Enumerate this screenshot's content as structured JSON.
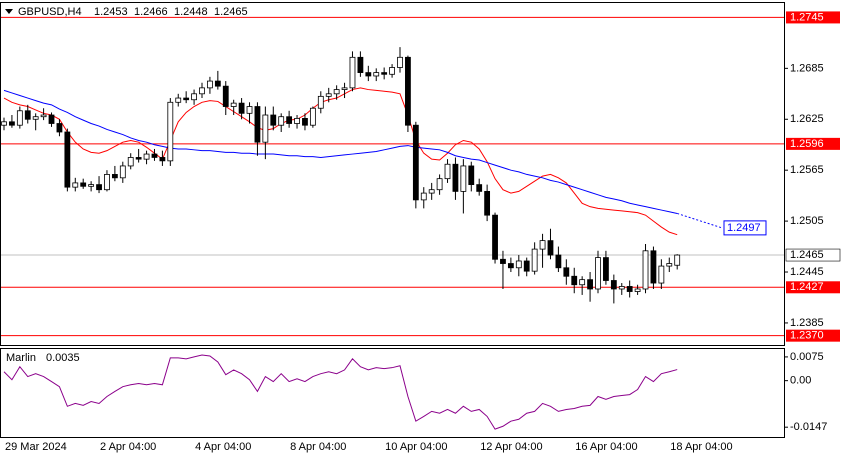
{
  "chart_data": [
    {
      "type": "candlestick",
      "title": "GBPUSD,H4",
      "categories": [
        "29 Mar 2024",
        null,
        null,
        null,
        null,
        null,
        null,
        null,
        null,
        null,
        null,
        null,
        "2 Apr 04:00",
        null,
        null,
        null,
        null,
        null,
        null,
        null,
        null,
        null,
        null,
        null,
        "4 Apr 04:00",
        null,
        null,
        null,
        null,
        null,
        null,
        null,
        null,
        null,
        null,
        null,
        "8 Apr 04:00",
        null,
        null,
        null,
        null,
        null,
        null,
        null,
        null,
        null,
        null,
        null,
        "10 Apr 04:00",
        null,
        null,
        null,
        null,
        null,
        null,
        null,
        null,
        null,
        null,
        null,
        "12 Apr 04:00",
        null,
        null,
        null,
        null,
        null,
        null,
        null,
        null,
        null,
        null,
        null,
        "16 Apr 04:00",
        null,
        null,
        null,
        null,
        null,
        null,
        null,
        null,
        null,
        null,
        null,
        "18 Apr 04:00",
        null
      ],
      "open": [
        1.2618,
        1.2622,
        1.2618,
        1.2635,
        1.2625,
        1.2628,
        1.263,
        1.262,
        1.261,
        1.2545,
        1.255,
        1.2546,
        1.2548,
        1.2542,
        1.256,
        1.2556,
        1.257,
        1.258,
        1.2578,
        1.2584,
        1.258,
        1.2576,
        1.2645,
        1.265,
        1.2648,
        1.2655,
        1.2662,
        1.267,
        1.2664,
        1.264,
        1.2644,
        1.2632,
        1.264,
        1.2598,
        1.263,
        1.2618,
        1.2628,
        1.262,
        1.2626,
        1.2618,
        1.2638,
        1.2652,
        1.2655,
        1.266,
        1.2662,
        1.2698,
        1.268,
        1.2676,
        1.268,
        1.2678,
        1.2686,
        1.2698,
        1.2618,
        1.253,
        1.2538,
        1.2542,
        1.2555,
        1.2572,
        1.254,
        1.257,
        1.2548,
        1.254,
        1.2512,
        1.246,
        1.2455,
        1.245,
        1.2458,
        1.2446,
        1.2472,
        1.2482,
        1.2465,
        1.245,
        1.244,
        1.243,
        1.2436,
        1.2425,
        1.2462,
        1.2435,
        1.2425,
        1.2428,
        1.2422,
        1.2425,
        1.247,
        1.2432,
        1.2452,
        1.2453
      ],
      "high": [
        1.2627,
        1.263,
        1.264,
        1.2642,
        1.2632,
        1.2638,
        1.2633,
        1.2625,
        1.2614,
        1.2556,
        1.2555,
        1.2552,
        1.2558,
        1.2565,
        1.257,
        1.2575,
        1.2585,
        1.259,
        1.2588,
        1.259,
        1.2588,
        1.265,
        1.2655,
        1.2658,
        1.266,
        1.2668,
        1.2675,
        1.2682,
        1.267,
        1.2648,
        1.265,
        1.2645,
        1.2645,
        1.264,
        1.264,
        1.2632,
        1.2635,
        1.263,
        1.2632,
        1.264,
        1.2658,
        1.2662,
        1.2665,
        1.2668,
        1.2705,
        1.2705,
        1.2688,
        1.2685,
        1.2686,
        1.269,
        1.271,
        1.27,
        1.2622,
        1.2545,
        1.255,
        1.256,
        1.2578,
        1.258,
        1.2578,
        1.2575,
        1.2555,
        1.2548,
        1.2515,
        1.247,
        1.2462,
        1.2465,
        1.2462,
        1.248,
        1.249,
        1.2496,
        1.2475,
        1.246,
        1.245,
        1.244,
        1.2445,
        1.247,
        1.247,
        1.2442,
        1.2432,
        1.2435,
        1.243,
        1.2478,
        1.2475,
        1.246,
        1.2462,
        1.2466
      ],
      "low": [
        1.2612,
        1.2615,
        1.2614,
        1.262,
        1.2612,
        1.2624,
        1.2616,
        1.2605,
        1.254,
        1.254,
        1.2543,
        1.254,
        1.2538,
        1.254,
        1.2552,
        1.255,
        1.2566,
        1.2574,
        1.2572,
        1.2576,
        1.257,
        1.257,
        1.264,
        1.2644,
        1.2642,
        1.265,
        1.2655,
        1.266,
        1.263,
        1.263,
        1.2625,
        1.262,
        1.2582,
        1.2578,
        1.2612,
        1.261,
        1.2615,
        1.2614,
        1.2612,
        1.2615,
        1.2632,
        1.2645,
        1.2648,
        1.265,
        1.2658,
        1.2675,
        1.267,
        1.267,
        1.2672,
        1.2674,
        1.268,
        1.261,
        1.252,
        1.252,
        1.253,
        1.2536,
        1.255,
        1.253,
        1.2514,
        1.254,
        1.2535,
        1.2505,
        1.2455,
        1.2425,
        1.2445,
        1.244,
        1.244,
        1.2442,
        1.245,
        1.246,
        1.2445,
        1.243,
        1.242,
        1.2418,
        1.241,
        1.242,
        1.243,
        1.2408,
        1.2418,
        1.2415,
        1.2418,
        1.242,
        1.2425,
        1.2425,
        1.2445,
        1.2448
      ],
      "close": [
        1.2622,
        1.2618,
        1.2635,
        1.2625,
        1.2628,
        1.263,
        1.262,
        1.261,
        1.2545,
        1.255,
        1.2546,
        1.2548,
        1.2542,
        1.256,
        1.2556,
        1.257,
        1.258,
        1.2578,
        1.2584,
        1.258,
        1.2576,
        1.2645,
        1.265,
        1.2648,
        1.2655,
        1.2662,
        1.267,
        1.2664,
        1.264,
        1.2644,
        1.2632,
        1.264,
        1.2598,
        1.263,
        1.2618,
        1.2628,
        1.262,
        1.2626,
        1.2618,
        1.2638,
        1.2652,
        1.2655,
        1.266,
        1.2662,
        1.2698,
        1.268,
        1.2676,
        1.268,
        1.2678,
        1.2686,
        1.2698,
        1.2618,
        1.253,
        1.2538,
        1.2542,
        1.2555,
        1.2572,
        1.254,
        1.257,
        1.2548,
        1.254,
        1.2512,
        1.246,
        1.2455,
        1.245,
        1.2458,
        1.2446,
        1.2472,
        1.2482,
        1.2465,
        1.245,
        1.244,
        1.243,
        1.2436,
        1.2425,
        1.2462,
        1.2435,
        1.2425,
        1.2428,
        1.2422,
        1.2425,
        1.247,
        1.2432,
        1.2452,
        1.2455,
        1.2465
      ],
      "lines": [
        {
          "color": "#ff0000",
          "values": [
            1.265,
            1.2645,
            1.2642,
            1.264,
            1.2636,
            1.2632,
            1.263,
            1.2625,
            1.261,
            1.2598,
            1.259,
            1.2586,
            1.2585,
            1.2588,
            1.2593,
            1.2598,
            1.26,
            1.2598,
            1.2592,
            1.2585,
            1.2578,
            1.26,
            1.2622,
            1.2633,
            1.264,
            1.2645,
            1.2647,
            1.2646,
            1.264,
            1.2634,
            1.2628,
            1.2622,
            1.2615,
            1.2612,
            1.2614,
            1.262,
            1.2624,
            1.2625,
            1.263,
            1.2638,
            1.2645,
            1.2648,
            1.265,
            1.2655,
            1.266,
            1.2662,
            1.266,
            1.2659,
            1.2658,
            1.2657,
            1.2655,
            1.263,
            1.26,
            1.2585,
            1.2578,
            1.2577,
            1.2585,
            1.2595,
            1.26,
            1.2598,
            1.259,
            1.2575,
            1.2555,
            1.2542,
            1.2538,
            1.254,
            1.2546,
            1.2552,
            1.2558,
            1.256,
            1.2556,
            1.255,
            1.2538,
            1.2526,
            1.2522,
            1.252,
            1.2519,
            1.2518,
            1.2517,
            1.2516,
            1.2515,
            1.2512,
            1.2505,
            1.2498,
            1.2492,
            1.2489
          ]
        },
        {
          "color": "#0000ff",
          "projection": 1.2497,
          "values": [
            1.2659,
            1.2656,
            1.2653,
            1.265,
            1.2647,
            1.2644,
            1.2642,
            1.2637,
            1.2633,
            1.2628,
            1.2624,
            1.262,
            1.2617,
            1.2613,
            1.261,
            1.2607,
            1.2603,
            1.26,
            1.2598,
            1.2595,
            1.2593,
            1.2591,
            1.259,
            1.259,
            1.2589,
            1.2588,
            1.2588,
            1.2587,
            1.2586,
            1.2586,
            1.2585,
            1.2585,
            1.2584,
            1.2584,
            1.2584,
            1.2583,
            1.2582,
            1.2582,
            1.2581,
            1.2581,
            1.258,
            1.2581,
            1.2582,
            1.2583,
            1.2584,
            1.2585,
            1.2586,
            1.2587,
            1.2589,
            1.2591,
            1.2593,
            1.2594,
            1.2592,
            1.2591,
            1.259,
            1.2589,
            1.2586,
            1.2582,
            1.258,
            1.2578,
            1.2577,
            1.2574,
            1.2571,
            1.2568,
            1.2565,
            1.2563,
            1.256,
            1.2558,
            1.2556,
            1.2553,
            1.2551,
            1.2548,
            1.2545,
            1.2542,
            1.2539,
            1.2536,
            1.2533,
            1.2531,
            1.2529,
            1.2526,
            1.2524,
            1.2522,
            1.252,
            1.2518,
            1.2516,
            1.2514
          ]
        }
      ],
      "levels": [
        1.2745,
        1.2596,
        1.2427,
        {
          "value": 1.237,
          "label": "1.2370"
        }
      ],
      "level_color": "#ff0000",
      "ylim": [
        1.2359,
        1.2762
      ],
      "yticks": [
        1.2385,
        1.2445,
        1.2505,
        1.2565,
        1.2625,
        1.2685
      ]
    },
    {
      "type": "line",
      "title": "Marlin",
      "color": "#8b008b",
      "values": [
        0.0028,
        0.0003,
        0.0044,
        0.0013,
        0.0022,
        0.0013,
        -0.0003,
        -0.0019,
        -0.0081,
        -0.0072,
        -0.0078,
        -0.0066,
        -0.0072,
        -0.005,
        -0.0034,
        -0.0019,
        -0.0013,
        -0.0009,
        -0.0013,
        -0.0009,
        -0.0013,
        0.0072,
        0.0072,
        0.0069,
        0.0075,
        0.0081,
        0.0078,
        0.0059,
        0.0019,
        0.0034,
        0.0022,
        0.0003,
        -0.0034,
        0.0013,
        -0.0003,
        0.0022,
        -0.0003,
        0.0006,
        -0.0003,
        0.0013,
        0.0022,
        0.0028,
        0.0022,
        0.0034,
        0.0069,
        0.0044,
        0.0034,
        0.0041,
        0.0038,
        0.0041,
        0.0047,
        -0.005,
        -0.0128,
        -0.0113,
        -0.0097,
        -0.0103,
        -0.0091,
        -0.0103,
        -0.0081,
        -0.0097,
        -0.0091,
        -0.0113,
        -0.0153,
        -0.0144,
        -0.0128,
        -0.0122,
        -0.0103,
        -0.0097,
        -0.0072,
        -0.0081,
        -0.0097,
        -0.0091,
        -0.0088,
        -0.0081,
        -0.0078,
        -0.005,
        -0.0059,
        -0.005,
        -0.0047,
        -0.0044,
        -0.0028,
        0.0013,
        -0.0003,
        0.0022,
        0.0028,
        0.0035
      ],
      "ylim": [
        -0.0178,
        0.01
      ],
      "yticks": [
        0.0075,
        {
          "value": 0,
          "label": "0.00"
        },
        -0.0147
      ]
    }
  ]
}
